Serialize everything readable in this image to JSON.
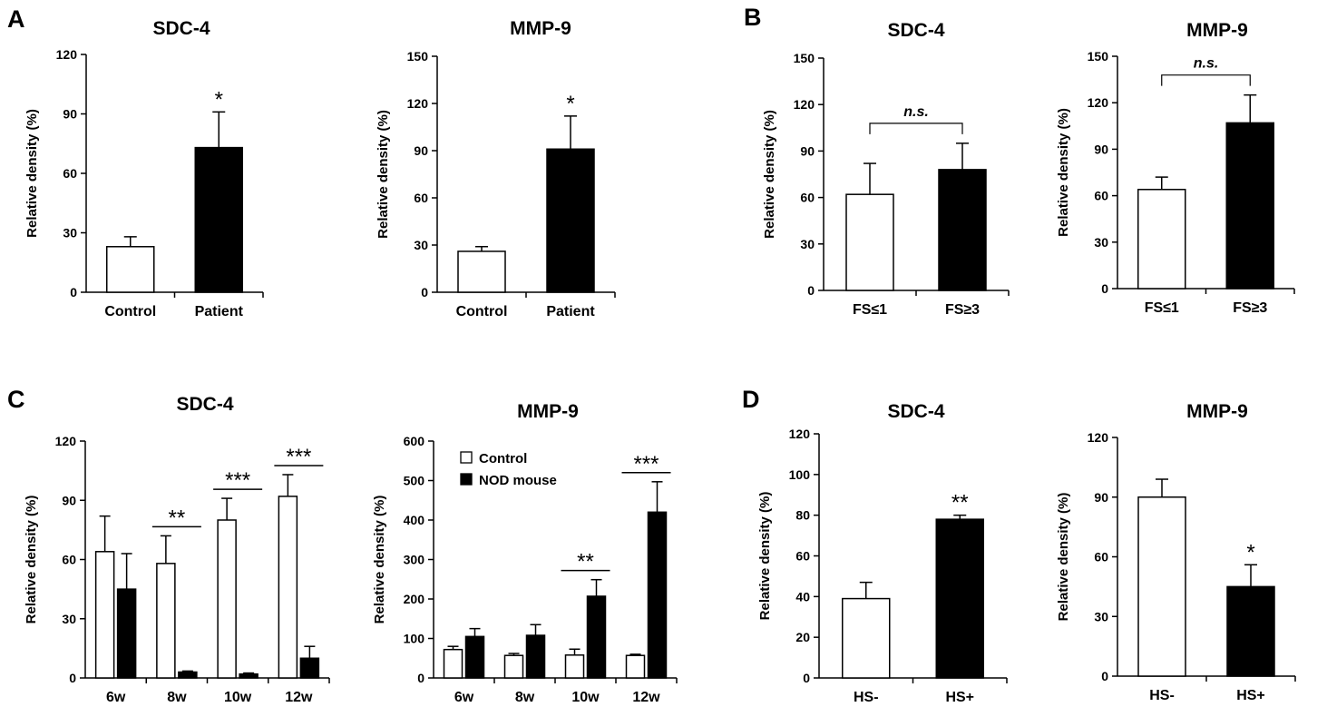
{
  "colors": {
    "control": "#ffffff",
    "treated": "#000000",
    "stroke": "#000000"
  },
  "panel_labels": [
    "A",
    "B",
    "C",
    "D"
  ],
  "chart_data": [
    {
      "panel": "A",
      "type": "bar",
      "title": "SDC-4",
      "ylabel": "Relative density (%)",
      "ylim": [
        0,
        120
      ],
      "yticks": [
        "0",
        "30",
        "60",
        "90",
        "120"
      ],
      "categories": [
        "Control",
        "Patient"
      ],
      "series": [
        {
          "values": [
            23,
            73
          ],
          "errors": [
            5,
            18
          ],
          "fills": [
            "#ffffff",
            "#000000"
          ]
        }
      ],
      "annotations": [
        {
          "text": "*",
          "bar": 1
        }
      ]
    },
    {
      "panel": "A",
      "type": "bar",
      "title": "MMP-9",
      "ylabel": "Relative density (%)",
      "ylim": [
        0,
        150
      ],
      "yticks": [
        "0",
        "30",
        "60",
        "90",
        "120",
        "150"
      ],
      "categories": [
        "Control",
        "Patient"
      ],
      "series": [
        {
          "values": [
            26,
            91
          ],
          "errors": [
            3,
            21
          ],
          "fills": [
            "#ffffff",
            "#000000"
          ]
        }
      ],
      "annotations": [
        {
          "text": "*",
          "bar": 1
        }
      ]
    },
    {
      "panel": "B",
      "type": "bar",
      "title": "SDC-4",
      "ylabel": "Relative density (%)",
      "ylim": [
        0,
        150
      ],
      "yticks": [
        "0",
        "30",
        "60",
        "90",
        "120",
        "150"
      ],
      "categories": [
        "FS≤1",
        "FS≥3"
      ],
      "series": [
        {
          "values": [
            62,
            78
          ],
          "errors": [
            20,
            17
          ],
          "fills": [
            "#ffffff",
            "#000000"
          ]
        }
      ],
      "brackets": [
        {
          "text": "n.s.",
          "from": 0,
          "to": 1
        }
      ]
    },
    {
      "panel": "B",
      "type": "bar",
      "title": "MMP-9",
      "ylabel": "Relative density (%)",
      "ylim": [
        0,
        150
      ],
      "yticks": [
        "0",
        "30",
        "60",
        "90",
        "120",
        "150"
      ],
      "categories": [
        "FS≤1",
        "FS≥3"
      ],
      "series": [
        {
          "values": [
            64,
            107
          ],
          "errors": [
            8,
            18
          ],
          "fills": [
            "#ffffff",
            "#000000"
          ]
        }
      ],
      "brackets": [
        {
          "text": "n.s.",
          "from": 0,
          "to": 1
        }
      ]
    },
    {
      "panel": "C",
      "type": "bar",
      "title": "SDC-4",
      "ylabel": "Relative density (%)",
      "ylim": [
        0,
        120
      ],
      "yticks": [
        "0",
        "30",
        "60",
        "90",
        "120"
      ],
      "categories": [
        "6w",
        "8w",
        "10w",
        "12w"
      ],
      "series": [
        {
          "name": "Control",
          "values": [
            64,
            58,
            80,
            92
          ],
          "errors": [
            18,
            14,
            11,
            11
          ]
        },
        {
          "name": "NOD mouse",
          "values": [
            45,
            3,
            2,
            10
          ],
          "errors": [
            18,
            0.5,
            0.5,
            6
          ]
        }
      ],
      "group_stars": [
        "",
        "**",
        "***",
        "***"
      ]
    },
    {
      "panel": "C",
      "type": "bar",
      "title": "MMP-9",
      "ylabel": "Relative density (%)",
      "ylim": [
        0,
        600
      ],
      "yticks": [
        "0",
        "100",
        "200",
        "300",
        "400",
        "500",
        "600"
      ],
      "categories": [
        "6w",
        "8w",
        "10w",
        "12w"
      ],
      "series": [
        {
          "name": "Control",
          "values": [
            72,
            57,
            58,
            57
          ],
          "errors": [
            8,
            5,
            15,
            3
          ]
        },
        {
          "name": "NOD mouse",
          "values": [
            105,
            108,
            207,
            420
          ],
          "errors": [
            20,
            27,
            42,
            77
          ]
        }
      ],
      "group_stars": [
        "",
        "",
        "**",
        "***"
      ],
      "legend": {
        "entries": [
          "Control",
          "NOD mouse"
        ],
        "position": "top-left"
      }
    },
    {
      "panel": "D",
      "type": "bar",
      "title": "SDC-4",
      "ylabel": "Relative density (%)",
      "ylim": [
        0,
        120
      ],
      "yticks": [
        "0",
        "20",
        "40",
        "60",
        "80",
        "100",
        "120"
      ],
      "categories": [
        "HS-",
        "HS+"
      ],
      "series": [
        {
          "values": [
            39,
            78
          ],
          "errors": [
            8,
            2
          ],
          "fills": [
            "#ffffff",
            "#000000"
          ]
        }
      ],
      "annotations": [
        {
          "text": "**",
          "bar": 1
        }
      ]
    },
    {
      "panel": "D",
      "type": "bar",
      "title": "MMP-9",
      "ylabel": "Relative density (%)",
      "ylim": [
        0,
        120
      ],
      "yticks": [
        "0",
        "30",
        "60",
        "90",
        "120"
      ],
      "categories": [
        "HS-",
        "HS+"
      ],
      "series": [
        {
          "values": [
            90,
            45
          ],
          "errors": [
            9,
            11
          ],
          "fills": [
            "#ffffff",
            "#000000"
          ]
        }
      ],
      "annotations": [
        {
          "text": "*",
          "bar": 1
        }
      ]
    }
  ]
}
